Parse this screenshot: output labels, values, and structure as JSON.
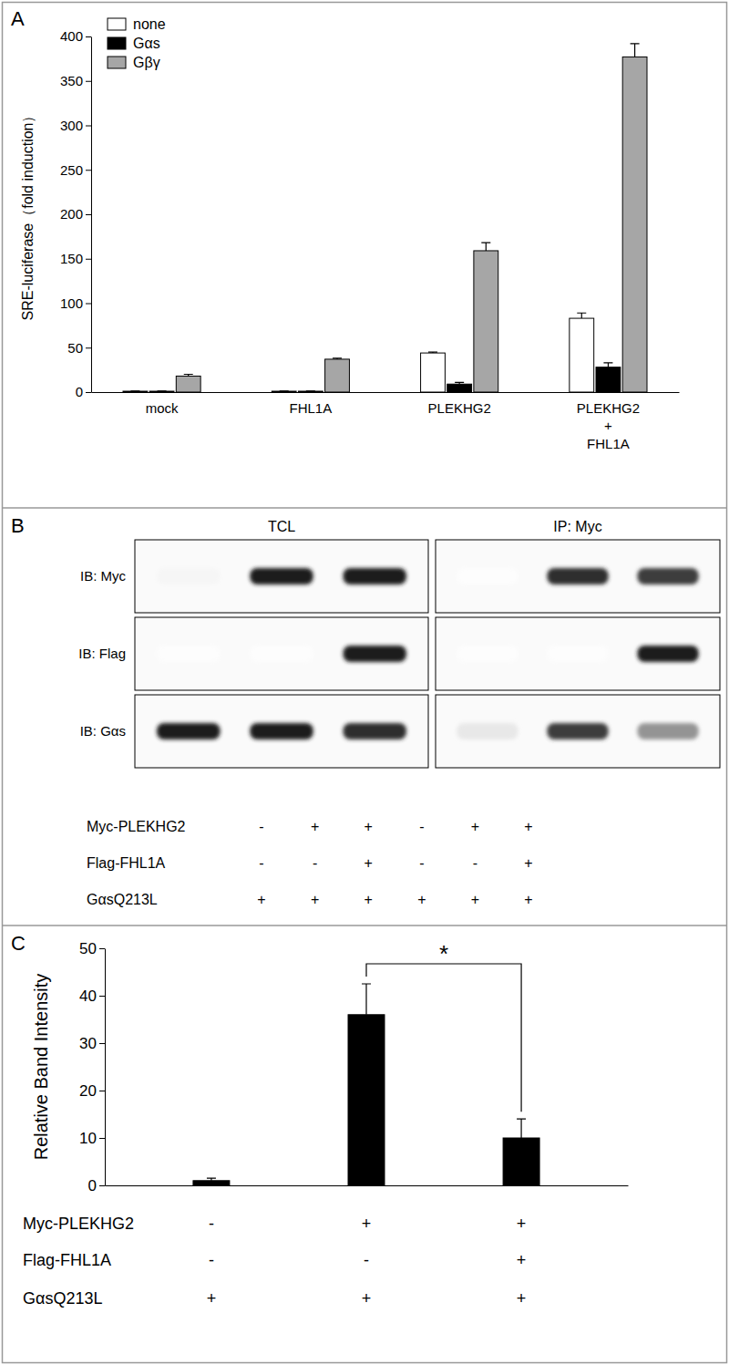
{
  "chart_data": [
    {
      "type": "bar",
      "label": "A",
      "ylabel": "SRE-luciferase（fold induction）",
      "categories": [
        "mock",
        "FHL1A",
        "PLEKHG2",
        "PLEKHG2 + FHL1A"
      ],
      "series": [
        {
          "name": "none",
          "color": "#ffffff",
          "values": [
            1,
            1,
            44,
            83
          ],
          "errors": [
            0.2,
            0.2,
            1,
            6
          ]
        },
        {
          "name": "Gαs",
          "color": "#000000",
          "values": [
            1,
            1,
            9,
            28
          ],
          "errors": [
            0.2,
            0.2,
            2,
            5
          ]
        },
        {
          "name": "Gβγ",
          "color": "#a6a6a6",
          "values": [
            18,
            37,
            159,
            377
          ],
          "errors": [
            2,
            1,
            9,
            15
          ]
        }
      ],
      "ylim": [
        0,
        400
      ],
      "yticks": [
        0,
        50,
        100,
        150,
        200,
        250,
        300,
        350,
        400
      ],
      "legend": "upper left"
    },
    {
      "type": "blot",
      "label": "B",
      "groups": [
        "TCL",
        "IP: Myc"
      ],
      "rows": [
        {
          "label": "IB: Myc",
          "bands": [
            0.05,
            0.9,
            0.9,
            0,
            0.85,
            0.8
          ]
        },
        {
          "label": "IB: Flag",
          "bands": [
            0,
            0,
            0.9,
            0,
            0,
            0.9
          ]
        },
        {
          "label": "IB: Gαs",
          "bands": [
            0.9,
            0.9,
            0.85,
            0.15,
            0.8,
            0.5
          ]
        }
      ],
      "conditions": [
        {
          "label": "Myc-PLEKHG2",
          "values": [
            "-",
            "+",
            "+",
            "-",
            "+",
            "+"
          ]
        },
        {
          "label": "Flag-FHL1A",
          "values": [
            "-",
            "-",
            "+",
            "-",
            "-",
            "+"
          ]
        },
        {
          "label": "GαsQ213L",
          "values": [
            "+",
            "+",
            "+",
            "+",
            "+",
            "+"
          ]
        }
      ]
    },
    {
      "type": "bar",
      "label": "C",
      "ylabel": "Relative Band Intensity",
      "categories": [
        null,
        null,
        null
      ],
      "values": [
        1,
        36,
        10
      ],
      "errors": [
        0.5,
        6.5,
        4
      ],
      "color": "#000000",
      "ylim": [
        0,
        50
      ],
      "yticks": [
        0,
        10,
        20,
        30,
        40,
        50
      ],
      "conditions": [
        {
          "label": "Myc-PLEKHG2",
          "values": [
            "-",
            "+",
            "+"
          ]
        },
        {
          "label": "Flag-FHL1A",
          "values": [
            "-",
            "-",
            "+"
          ]
        },
        {
          "label": "GαsQ213L",
          "values": [
            "+",
            "+",
            "+"
          ]
        }
      ],
      "annotations": [
        {
          "text": "*",
          "categories": [
            1,
            2
          ]
        }
      ]
    }
  ]
}
